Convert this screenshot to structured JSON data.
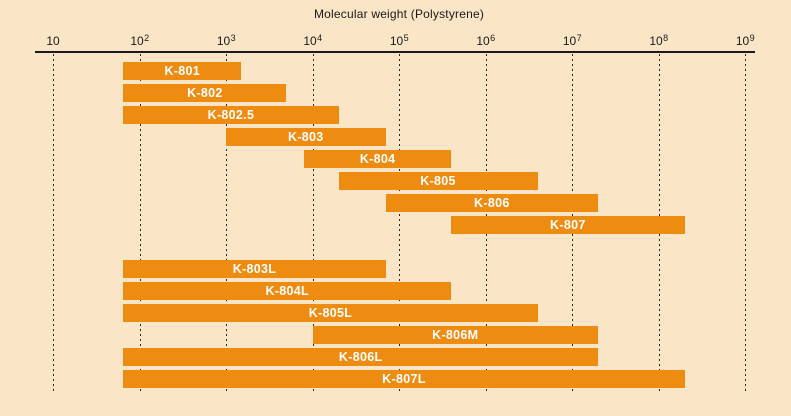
{
  "colors": {
    "background": "#fae5c6",
    "bar": "#ee8c12",
    "bar_label": "#ffffff",
    "axis": "#1a1a1a",
    "grid": "#2a2a2a"
  },
  "chart_data": {
    "type": "bar",
    "subtype": "horizontal-log-range-bars",
    "title": "Molecular weight (Polystyrene)",
    "xlabel": "Molecular weight (Polystyrene)",
    "x_scale": "log10",
    "xlim": [
      10,
      1000000000
    ],
    "grid": "vertical-dashed",
    "legend": null,
    "x_ticks": [
      {
        "base": "10",
        "sup": "",
        "value_exp": 1
      },
      {
        "base": "10",
        "sup": "2",
        "value_exp": 2
      },
      {
        "base": "10",
        "sup": "3",
        "value_exp": 3
      },
      {
        "base": "10",
        "sup": "4",
        "value_exp": 4
      },
      {
        "base": "10",
        "sup": "5",
        "value_exp": 5
      },
      {
        "base": "10",
        "sup": "6",
        "value_exp": 6
      },
      {
        "base": "10",
        "sup": "7",
        "value_exp": 7
      },
      {
        "base": "10",
        "sup": "8",
        "value_exp": 8
      },
      {
        "base": "10",
        "sup": "9",
        "value_exp": 9
      }
    ],
    "series": [
      {
        "group": 1,
        "label": "K-801",
        "mw_min": 65,
        "mw_max": 1500
      },
      {
        "group": 1,
        "label": "K-802",
        "mw_min": 65,
        "mw_max": 5000
      },
      {
        "group": 1,
        "label": "K-802.5",
        "mw_min": 65,
        "mw_max": 20000
      },
      {
        "group": 1,
        "label": "K-803",
        "mw_min": 1000,
        "mw_max": 70000
      },
      {
        "group": 1,
        "label": "K-804",
        "mw_min": 8000,
        "mw_max": 400000
      },
      {
        "group": 1,
        "label": "K-805",
        "mw_min": 20000,
        "mw_max": 4000000
      },
      {
        "group": 1,
        "label": "K-806",
        "mw_min": 70000,
        "mw_max": 20000000
      },
      {
        "group": 1,
        "label": "K-807",
        "mw_min": 400000,
        "mw_max": 200000000
      },
      {
        "group": 2,
        "label": "K-803L",
        "mw_min": 65,
        "mw_max": 70000
      },
      {
        "group": 2,
        "label": "K-804L",
        "mw_min": 65,
        "mw_max": 400000
      },
      {
        "group": 2,
        "label": "K-805L",
        "mw_min": 65,
        "mw_max": 4000000
      },
      {
        "group": 2,
        "label": "K-806M",
        "mw_min": 10000,
        "mw_max": 20000000
      },
      {
        "group": 2,
        "label": "K-806L",
        "mw_min": 65,
        "mw_max": 20000000
      },
      {
        "group": 2,
        "label": "K-807L",
        "mw_min": 65,
        "mw_max": 200000000
      }
    ]
  }
}
